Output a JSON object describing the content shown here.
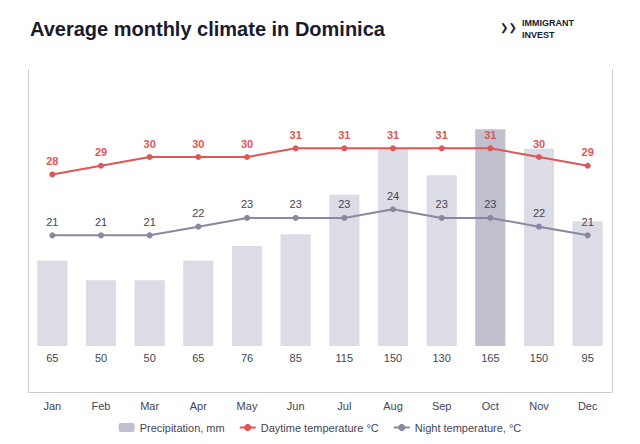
{
  "chart_data": {
    "type": "bar",
    "title": "Average monthly climate in Dominica",
    "categories": [
      "Jan",
      "Feb",
      "Mar",
      "Apr",
      "May",
      "Jun",
      "Jul",
      "Aug",
      "Sep",
      "Oct",
      "Nov",
      "Dec"
    ],
    "series": [
      {
        "name": "Precipitation, mm",
        "type": "bar",
        "color": "#c0c0ce",
        "colors": [
          "#dcdce6",
          "#dcdce6",
          "#dcdce6",
          "#dcdce6",
          "#dcdce6",
          "#dcdce6",
          "#dcdce6",
          "#dcdce6",
          "#dcdce6",
          "#c0c0ce",
          "#dcdce6",
          "#dcdce6"
        ],
        "values": [
          65,
          50,
          50,
          65,
          76,
          85,
          115,
          150,
          130,
          165,
          150,
          95
        ]
      },
      {
        "name": "Daytime temperature °C",
        "type": "line",
        "axis": "y2",
        "color": "#e05555",
        "marker": "circle",
        "values": [
          28,
          29,
          30,
          30,
          30,
          31,
          31,
          31,
          31,
          31,
          30,
          29
        ]
      },
      {
        "name": "Night temperature, °C",
        "type": "line",
        "axis": "y2",
        "color": "#8888a0",
        "marker": "circle",
        "values": [
          21,
          21,
          21,
          22,
          23,
          23,
          23,
          24,
          23,
          23,
          22,
          21
        ]
      }
    ],
    "ylim": [
      -35,
      210
    ],
    "y2lim": [
      3,
      40
    ],
    "data_labels": true,
    "tick_labels": "x",
    "grid": false,
    "legend": "bottom",
    "annotations": [
      "❯❯",
      "IMMIGRANT",
      "INVEST"
    ]
  }
}
